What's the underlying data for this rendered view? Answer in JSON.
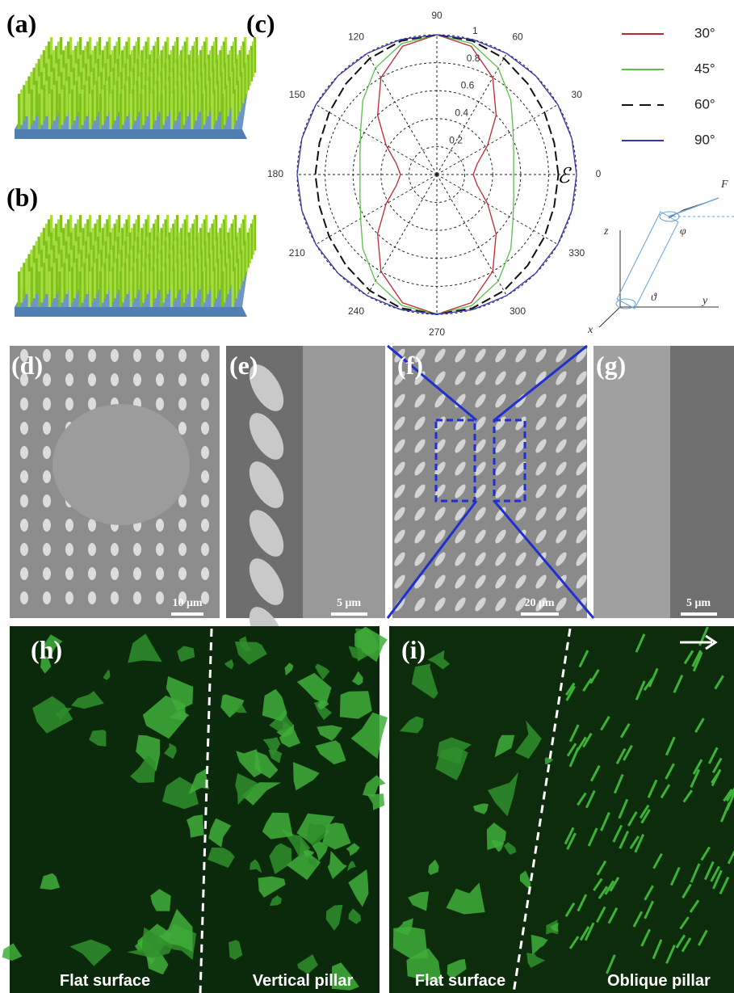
{
  "panel_labels": [
    "(a)",
    "(b)",
    "(c)",
    "(d)",
    "(e)",
    "(f)",
    "(g)",
    "(h)",
    "(i)"
  ],
  "chart_data": {
    "type": "polar",
    "rlim": [
      0,
      1
    ],
    "rticks": [
      0.2,
      0.4,
      0.6,
      0.8,
      1
    ],
    "thetaticks": [
      0,
      30,
      60,
      90,
      120,
      150,
      180,
      210,
      240,
      270,
      300,
      330
    ],
    "annotation": "ℰ",
    "theta": [
      0,
      15,
      30,
      45,
      60,
      75,
      90,
      105,
      120,
      135,
      150,
      165,
      180,
      195,
      210,
      225,
      240,
      255,
      270,
      285,
      300,
      315,
      330,
      345
    ],
    "series": [
      {
        "name": "30°",
        "color": "#c0282d",
        "style": "solid",
        "values": [
          0.26,
          0.3,
          0.42,
          0.6,
          0.8,
          0.95,
          1,
          0.95,
          0.8,
          0.6,
          0.42,
          0.3,
          0.26,
          0.3,
          0.42,
          0.6,
          0.8,
          0.95,
          1,
          0.95,
          0.8,
          0.6,
          0.42,
          0.3
        ]
      },
      {
        "name": "45°",
        "color": "#5ac04a",
        "style": "solid",
        "values": [
          0.55,
          0.57,
          0.63,
          0.75,
          0.88,
          0.97,
          1,
          0.97,
          0.88,
          0.75,
          0.63,
          0.57,
          0.55,
          0.57,
          0.63,
          0.75,
          0.88,
          0.97,
          1,
          0.97,
          0.88,
          0.75,
          0.63,
          0.57
        ]
      },
      {
        "name": "60°",
        "color": "#111111",
        "style": "dashed",
        "values": [
          0.87,
          0.87,
          0.89,
          0.92,
          0.96,
          0.99,
          1,
          0.99,
          0.96,
          0.92,
          0.89,
          0.87,
          0.87,
          0.87,
          0.89,
          0.92,
          0.96,
          0.99,
          1,
          0.99,
          0.96,
          0.92,
          0.89,
          0.87
        ]
      },
      {
        "name": "90°",
        "color": "#3535b5",
        "style": "solid",
        "values": [
          1,
          1,
          1,
          1,
          1,
          1,
          1,
          1,
          1,
          1,
          1,
          1,
          1,
          1,
          1,
          1,
          1,
          1,
          1,
          1,
          1,
          1,
          1,
          1
        ]
      }
    ]
  },
  "diagram": {
    "force": "F",
    "phi": "φ",
    "theta": "ϑ",
    "z": "z",
    "y": "y",
    "x": "x"
  },
  "scale_bars": [
    "10 μm",
    "5 μm",
    "20 μm",
    "5 μm"
  ],
  "captions": [
    "Flat surface",
    "Vertical pillar",
    "Flat surface",
    "Oblique pillar"
  ]
}
